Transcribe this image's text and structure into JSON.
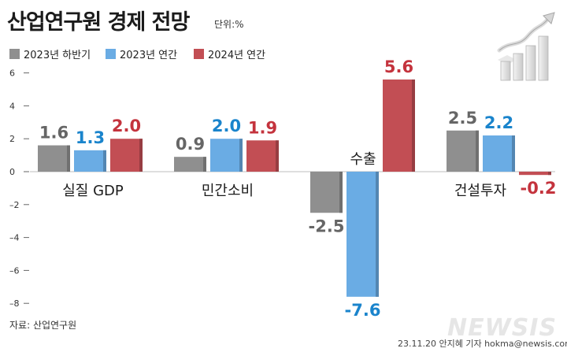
{
  "header": {
    "title": "산업연구원 경제 전망",
    "unit": "단위:%"
  },
  "legend": [
    {
      "label": "2023년 하반기",
      "color": "#8f8f8f"
    },
    {
      "label": "2023년 연간",
      "color": "#6aace4"
    },
    {
      "label": "2024년 연간",
      "color": "#c24e54"
    }
  ],
  "footer": {
    "source": "자료: 산업연구원",
    "credit": "23.11.20 안지혜 기자 hokma@newsis.com",
    "watermark": "NEWSIS"
  },
  "chart_data": {
    "type": "bar",
    "categories": [
      "실질 GDP",
      "민간소비",
      "수출",
      "건설투자"
    ],
    "series": [
      {
        "name": "2023년 하반기",
        "values": [
          1.6,
          0.9,
          -2.5,
          2.5
        ],
        "labels": [
          "1.6",
          "0.9",
          "-2.5",
          "2.5"
        ],
        "color": "#8f8f8f",
        "labelColor": "#666666"
      },
      {
        "name": "2023년 연간",
        "values": [
          1.3,
          2.0,
          -7.6,
          2.2
        ],
        "labels": [
          "1.3",
          "2.0",
          "-7.6",
          "2.2"
        ],
        "color": "#6aace4",
        "labelColor": "#1a84cc"
      },
      {
        "name": "2024년 연간",
        "values": [
          2.0,
          1.9,
          5.6,
          -0.2
        ],
        "labels": [
          "2.0",
          "1.9",
          "5.6",
          "-0.2"
        ],
        "color": "#c24e54",
        "labelColor": "#c4333d"
      }
    ],
    "yticks": [
      6,
      4,
      2,
      0,
      -2,
      -4,
      -6,
      -8
    ],
    "ytick_labels": [
      "6",
      "4",
      "2",
      "0",
      "–2",
      "–4",
      "–6",
      "–8"
    ],
    "ylim": [
      -8.5,
      6.5
    ],
    "grid": false,
    "legend_position": "top-left"
  }
}
